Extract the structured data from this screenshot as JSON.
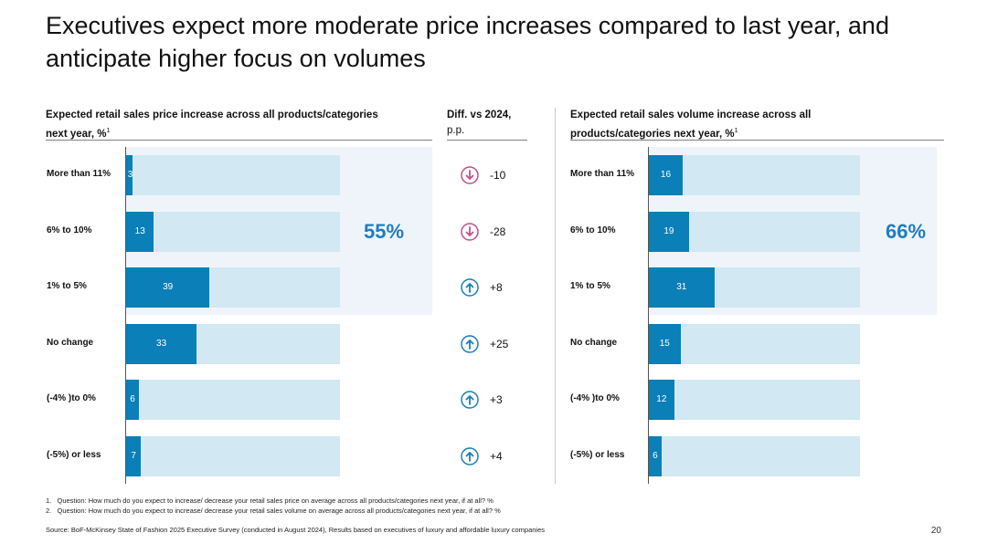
{
  "title": "Executives expect more moderate price increases compared to last year, and anticipate higher focus on volumes",
  "colors": {
    "bar_fill": "#0a7fb8",
    "bar_track": "#d2e8f3",
    "highlight_bg": "#eff4fb",
    "highlight_text": "#1e7ec2",
    "down_icon": "#c0508a",
    "up_icon": "#1a7fb5"
  },
  "chart_data": [
    {
      "type": "bar",
      "orientation": "horizontal",
      "title": "Expected retail sales price increase across all products/categories next year, %",
      "title_lines": [
        "Expected retail sales price increase across all products/categories",
        "next year, %"
      ],
      "footnote_mark": "1",
      "categories": [
        "More than 11%",
        "6% to 10%",
        "1% to 5%",
        "No change",
        "(-4% )to 0%",
        "(-5%) or less"
      ],
      "values": [
        3,
        13,
        39,
        33,
        6,
        7
      ],
      "xlim": [
        0,
        100
      ],
      "highlight_label": "55%",
      "highlight_categories": [
        "More than 11%",
        "6% to 10%",
        "1% to 5%"
      ]
    },
    {
      "type": "table",
      "title": "Diff. vs 2024, p.p.",
      "title_lines": [
        "Diff. vs 2024,",
        "p.p."
      ],
      "values": [
        "-10",
        "-28",
        "+8",
        "+25",
        "+3",
        "+4"
      ],
      "directions": [
        "down",
        "down",
        "up",
        "up",
        "up",
        "up"
      ]
    },
    {
      "type": "bar",
      "orientation": "horizontal",
      "title": "Expected retail sales volume increase across all products/categories next year, %",
      "title_lines": [
        "Expected retail sales volume increase across all",
        "products/categories next year, %"
      ],
      "footnote_mark": "1",
      "categories": [
        "More than 11%",
        "6% to 10%",
        "1% to 5%",
        "No change",
        "(-4% )to 0%",
        "(-5%) or less"
      ],
      "values": [
        16,
        19,
        31,
        15,
        12,
        6
      ],
      "xlim": [
        0,
        100
      ],
      "highlight_label": "66%",
      "highlight_categories": [
        "More than 11%",
        "6% to 10%",
        "1% to 5%"
      ]
    }
  ],
  "footnotes": [
    "1.   Question: How much do you expect to increase/ decrease your retail sales price on average across all products/categories next year, if at all? %",
    "2.   Question: How much do you expect to increase/ decrease your retail sales volume on average across all products/categories next year, if at all? %"
  ],
  "source": "Source: BoF-McKinsey State of Fashion 2025 Executive Survey (conducted in August 2024), Results based on executives of luxury and affordable luxury companies",
  "page_number": "20"
}
